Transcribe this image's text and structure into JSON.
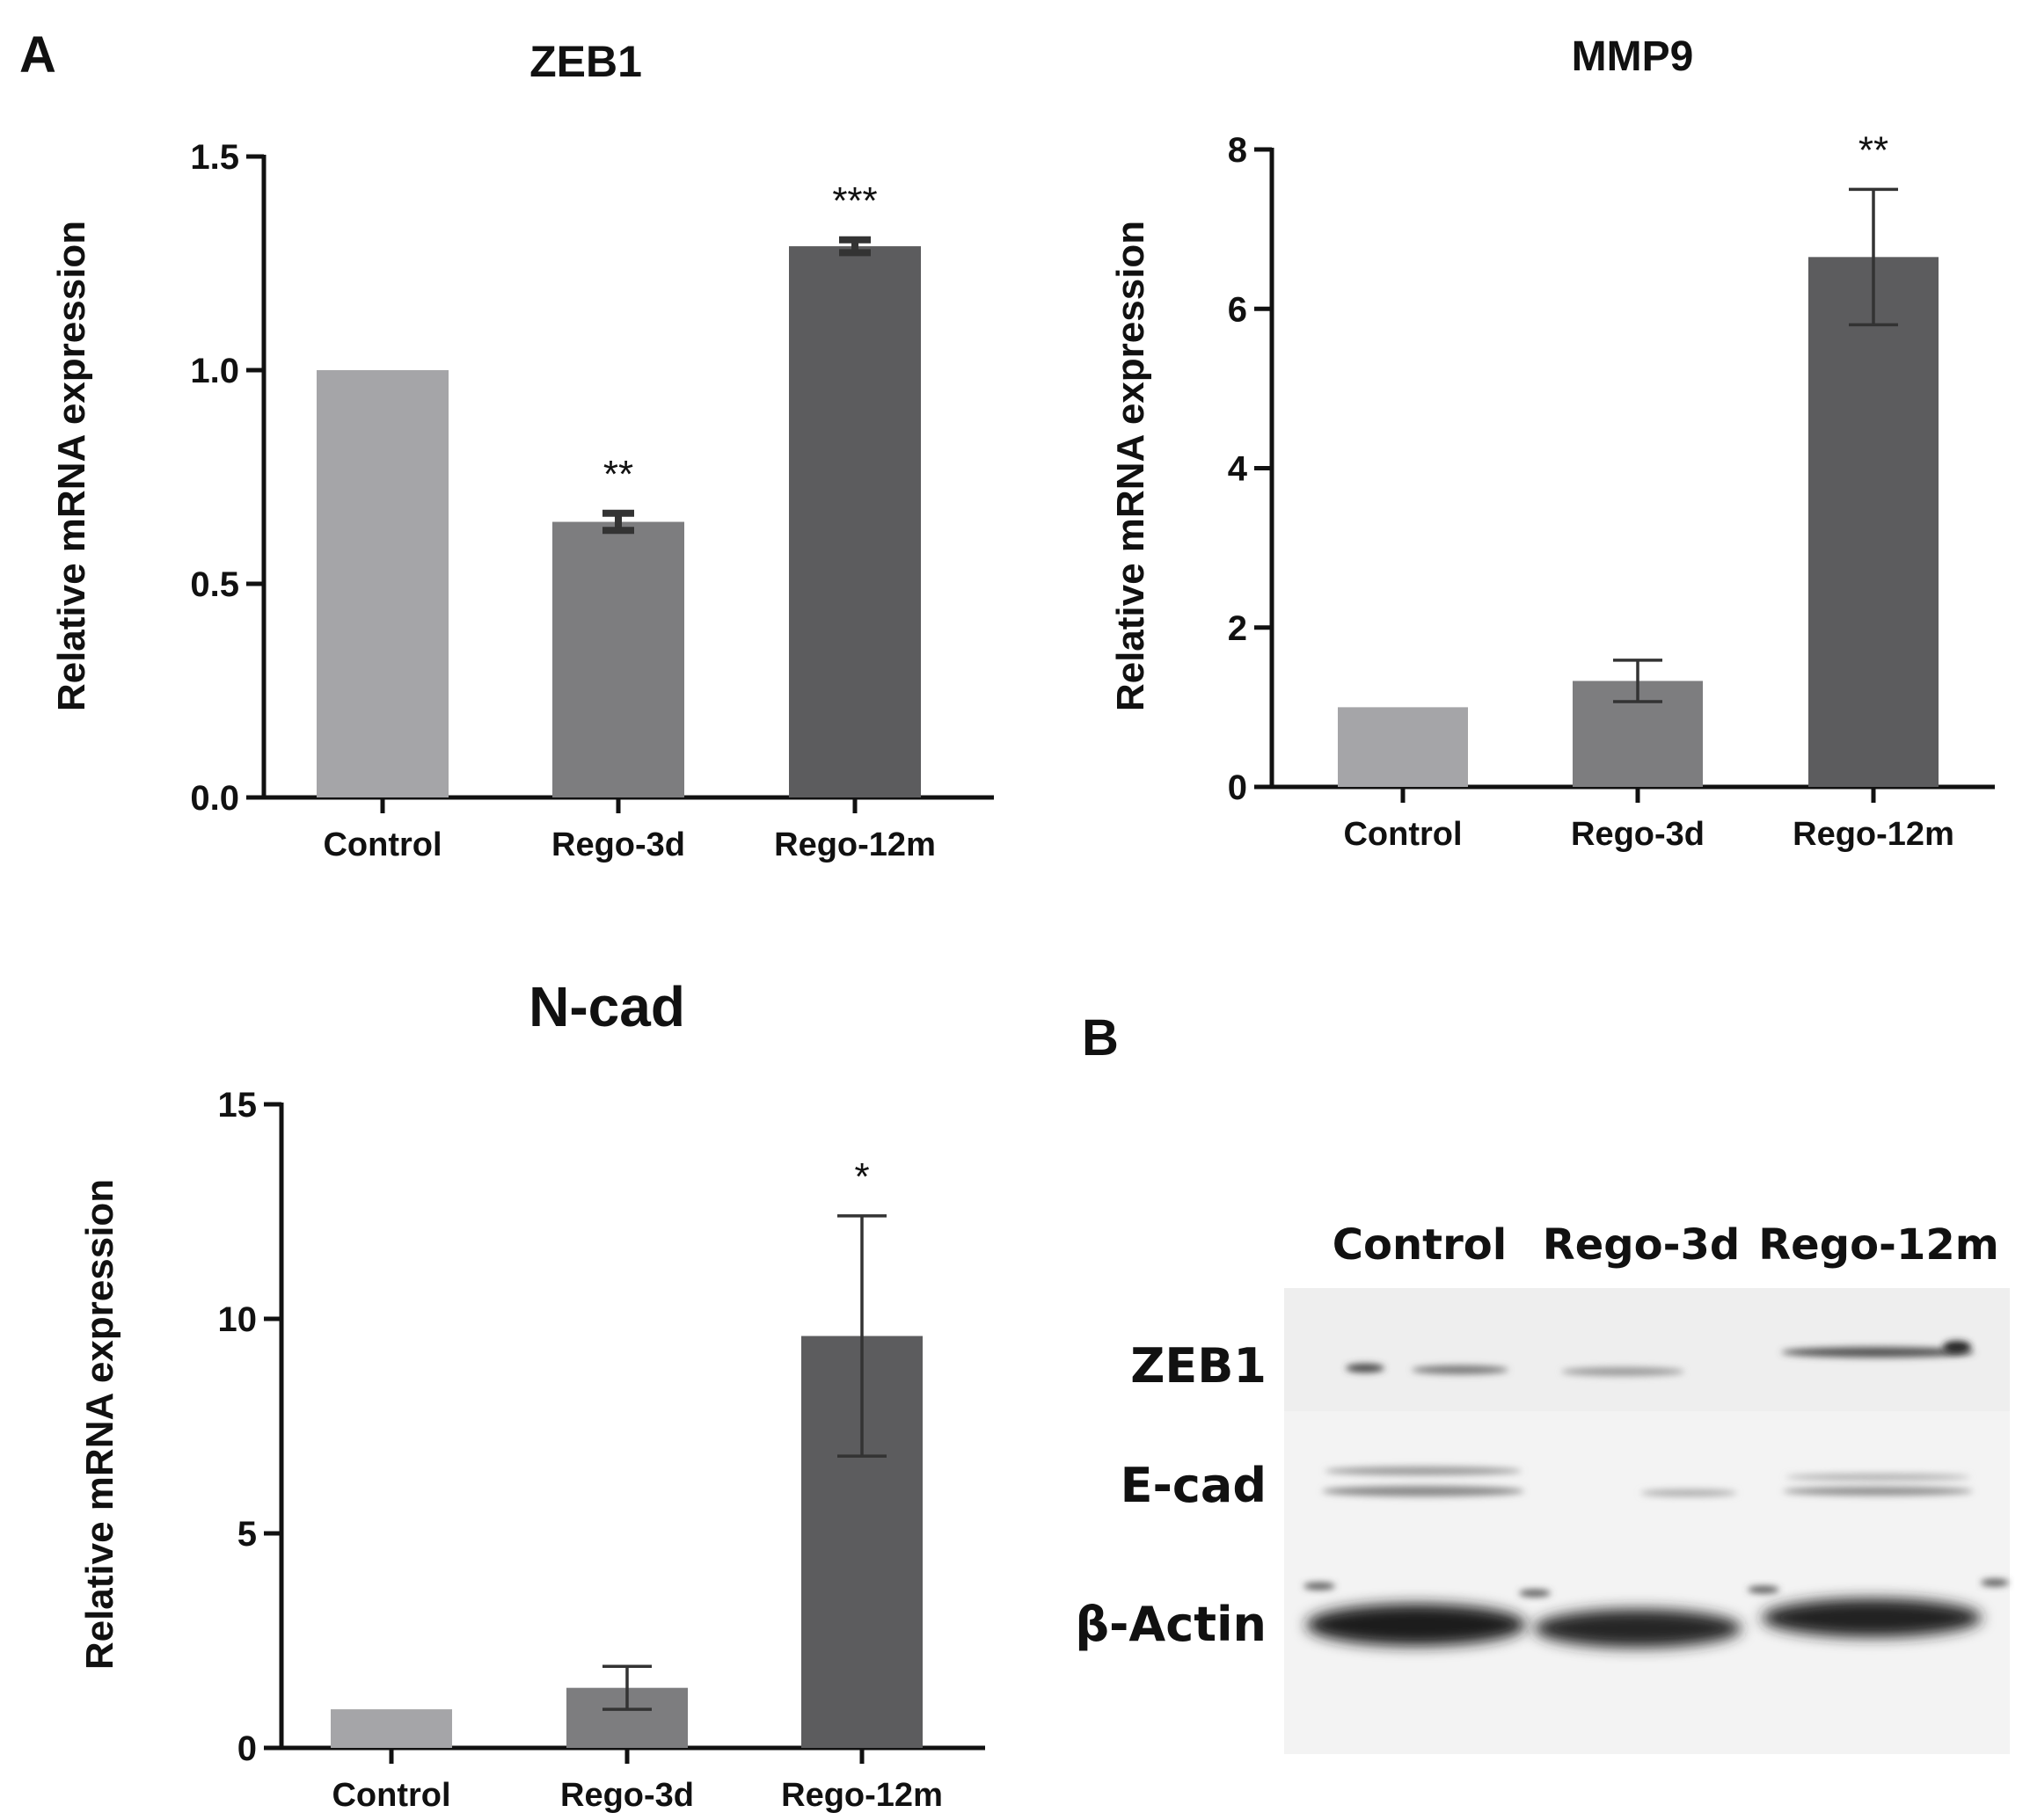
{
  "panels": {
    "a_label": "A",
    "b_label": "B"
  },
  "chart_data": [
    {
      "type": "bar",
      "title": "ZEB1",
      "xlabel": "",
      "ylabel": "Relative mRNA expression",
      "categories": [
        "Control",
        "Rego-3d",
        "Rego-12m"
      ],
      "values": [
        1.0,
        0.645,
        1.29
      ],
      "errors": [
        0,
        0.02,
        0.015
      ],
      "significance": [
        "",
        "**",
        "***"
      ],
      "ylim": [
        0,
        1.5
      ],
      "yticks": [
        0,
        0.5,
        1.0,
        1.5
      ],
      "ytick_labels": [
        "0.0",
        "0.5",
        "1.0",
        "1.5"
      ],
      "colors": [
        "#a5a5a8",
        "#7d7d7f",
        "#5c5c5e"
      ],
      "grid": false
    },
    {
      "type": "bar",
      "title": "MMP9",
      "xlabel": "",
      "ylabel": "Relative mRNA expression",
      "categories": [
        "Control",
        "Rego-3d",
        "Rego-12m"
      ],
      "values": [
        1.0,
        1.33,
        6.65
      ],
      "errors": [
        0,
        0.26,
        0.85
      ],
      "significance": [
        "",
        "",
        "**"
      ],
      "ylim": [
        0,
        8
      ],
      "yticks": [
        0,
        2,
        4,
        6,
        8
      ],
      "ytick_labels": [
        "0",
        "2",
        "4",
        "6",
        "8"
      ],
      "colors": [
        "#a5a5a8",
        "#7d7d7f",
        "#5c5c5e"
      ],
      "grid": false
    },
    {
      "type": "bar",
      "title": "N-cad",
      "xlabel": "",
      "ylabel": "Relative mRNA expression",
      "categories": [
        "Control",
        "Rego-3d",
        "Rego-12m"
      ],
      "values": [
        0.9,
        1.4,
        9.6
      ],
      "errors": [
        0,
        0.5,
        2.8
      ],
      "significance": [
        "",
        "",
        "*"
      ],
      "ylim": [
        0,
        15
      ],
      "yticks": [
        0,
        5,
        10,
        15
      ],
      "ytick_labels": [
        "0",
        "5",
        "10",
        "15"
      ],
      "colors": [
        "#a5a5a8",
        "#7d7d7f",
        "#5c5c5e"
      ],
      "grid": false
    }
  ],
  "western_blot": {
    "columns": [
      "Control",
      "Rego-3d",
      "Rego-12m"
    ],
    "rows": [
      "ZEB1",
      "E-cad",
      "β-Actin"
    ]
  }
}
